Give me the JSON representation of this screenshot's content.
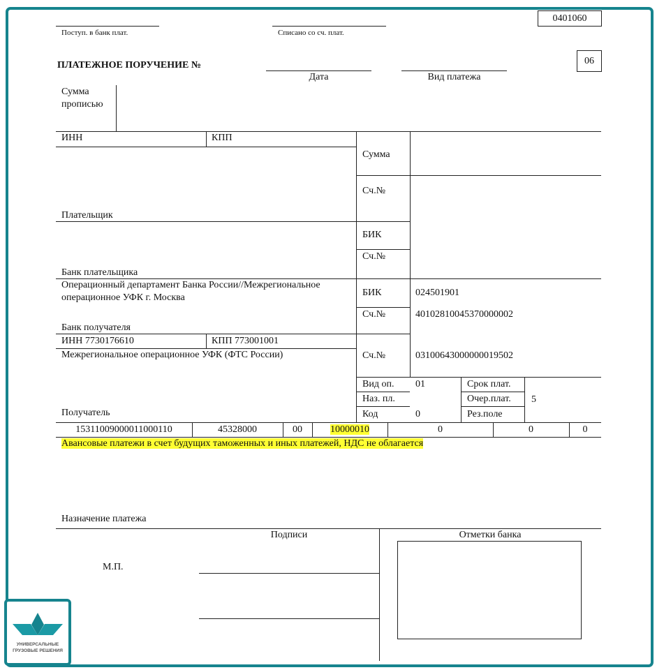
{
  "form_code": "0401060",
  "payment_status_code": "06",
  "top": {
    "received_label": "Поступ.  в банк плат.",
    "debited_label": "Списано  со сч.   плат."
  },
  "title": "ПЛАТЕЖНОЕ ПОРУЧЕНИЕ №",
  "date_label": "Дата",
  "payment_type_label": "Вид платежа",
  "amount_words_label1": "Сумма",
  "amount_words_label2": "прописью",
  "payer": {
    "inn_label": "ИНН",
    "kpp_label": "КПП",
    "label": "Плательщик",
    "amount_label": "Сумма",
    "account_label": "Сч.№"
  },
  "payer_bank": {
    "label": "Банк плательщика",
    "bik_label": "БИК",
    "account_label": "Сч.№"
  },
  "recipient_bank": {
    "name_line1": "Операционный департамент Банка России//Межрегиональное",
    "name_line2": "операционное УФК г. Москва",
    "label": "Банк получателя",
    "bik_label": "БИК",
    "bik": "024501901",
    "account_label": "Сч.№",
    "account": "40102810045370000002"
  },
  "recipient": {
    "inn": "ИНН 7730176610",
    "kpp": "КПП 773001001",
    "name": "Межрегиональное операционное УФК (ФТС России)",
    "label": "Получатель",
    "account_label": "Сч.№",
    "account": "03100643000000019502"
  },
  "details": {
    "op_type_label": "Вид оп.",
    "op_type": "01",
    "purpose_label": "Наз. пл.",
    "code_label": "Код",
    "code": "0",
    "due_label": "Срок плат.",
    "priority_label": "Очер.плат.",
    "priority": "5",
    "reserve_label": "Рез.поле"
  },
  "codes": [
    "15311009000011000110",
    "45328000",
    "00",
    "10000010",
    "0",
    "0",
    "0"
  ],
  "purpose_text": "Авансовые платежи в счет будущих таможенных и иных платежей, НДС не облагается",
  "purpose_label": "Назначение платежа",
  "signatures_label": "Подписи",
  "bank_marks_label": "Отметки банка",
  "stamp_label": "М.П.",
  "logo": {
    "line1": "УНИВЕРСАЛЬНЫЕ",
    "line2": "ГРУЗОВЫЕ РЕШЕНИЯ",
    "color": "#16848e"
  },
  "highlight_color": "#ffff33"
}
